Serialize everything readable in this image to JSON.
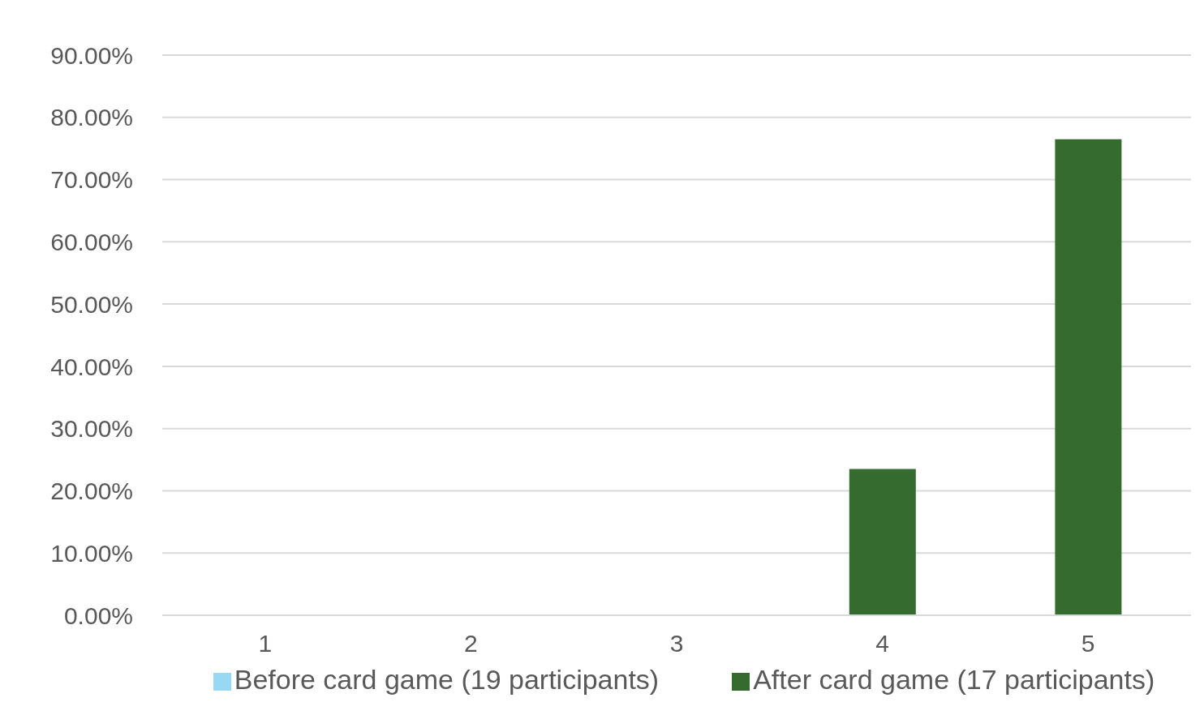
{
  "chart_data": {
    "type": "bar",
    "categories": [
      "1",
      "2",
      "3",
      "4",
      "5"
    ],
    "series": [
      {
        "name": "Before card game (19 participants)",
        "color": "#97d9f5",
        "values": [
          0,
          0,
          0,
          0,
          0
        ]
      },
      {
        "name": "After card game (17 participants)",
        "color": "#356b2f",
        "values": [
          0,
          0,
          0,
          23.5,
          76.5
        ]
      }
    ],
    "ylim": [
      0,
      90
    ],
    "yticks": [
      {
        "value": 0,
        "label": "0.00%"
      },
      {
        "value": 10,
        "label": "10.00%"
      },
      {
        "value": 20,
        "label": "20.00%"
      },
      {
        "value": 30,
        "label": "30.00%"
      },
      {
        "value": 40,
        "label": "40.00%"
      },
      {
        "value": 50,
        "label": "50.00%"
      },
      {
        "value": 60,
        "label": "60.00%"
      },
      {
        "value": 70,
        "label": "70.00%"
      },
      {
        "value": 80,
        "label": "80.00%"
      },
      {
        "value": 90,
        "label": "90.00%"
      }
    ],
    "grid": "y",
    "legend": "bottom"
  }
}
